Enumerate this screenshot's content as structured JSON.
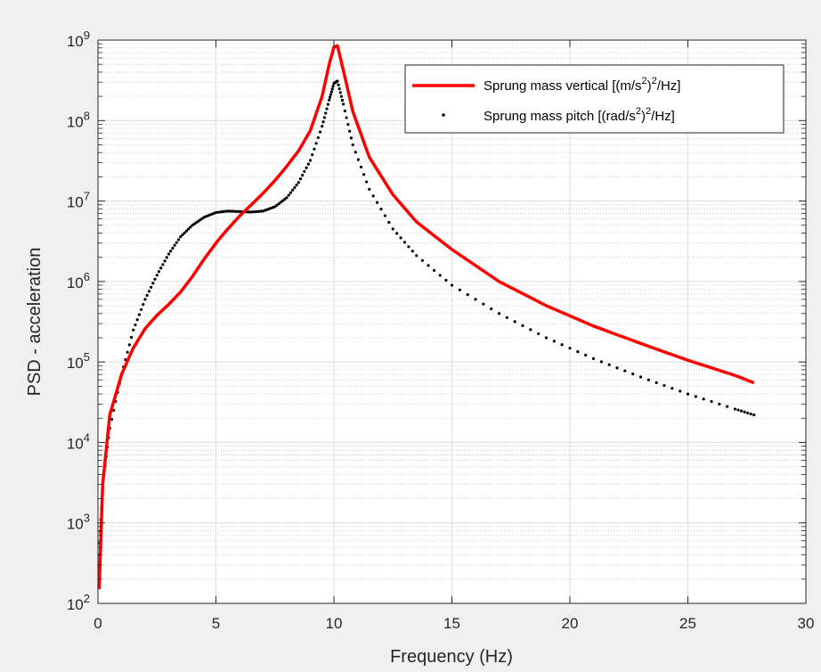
{
  "chart_data": {
    "type": "line",
    "xlabel": "Frequency (Hz)",
    "ylabel": "PSD - acceleration",
    "xlim": [
      0,
      30
    ],
    "ylim": [
      100,
      1000000000
    ],
    "yscale": "log",
    "xticks": [
      "0",
      "5",
      "10",
      "15",
      "20",
      "25",
      "30"
    ],
    "ytick_exponents": [
      "2",
      "3",
      "4",
      "5",
      "6",
      "7",
      "8",
      "9"
    ],
    "ytick_base": "10",
    "grid": true,
    "minor_grid": true,
    "legend_position": "top-right",
    "series": [
      {
        "name": "Sprung mass vertical [(m/s²)²/Hz]",
        "legend": {
          "pre": "Sprung mass vertical [(m/s",
          "sup1": "2",
          "mid": ")",
          "sup2": "2",
          "post": "/Hz]"
        },
        "color": "#ff0000",
        "style": "solid",
        "x": [
          0.05,
          0.2,
          0.5,
          1.0,
          1.5,
          2.0,
          2.5,
          3.0,
          3.5,
          4.0,
          4.5,
          5.0,
          5.5,
          6.0,
          6.5,
          7.0,
          7.5,
          8.0,
          8.5,
          9.0,
          9.5,
          9.8,
          10.0,
          10.15,
          10.4,
          10.8,
          11.5,
          12.5,
          13.5,
          15.0,
          17.0,
          19.0,
          21.0,
          23.0,
          25.0,
          27.0,
          27.8
        ],
        "y": [
          150,
          3000,
          22000,
          70000,
          150000,
          260000,
          380000,
          520000,
          740000,
          1150000,
          1900000,
          3000000,
          4500000,
          6500000,
          9000000,
          12500000,
          18000000,
          27000000,
          42000000,
          75000000,
          200000000,
          500000000,
          820000000,
          850000000,
          420000000,
          130000000,
          35000000,
          12000000,
          5500000,
          2500000,
          1000000,
          500000,
          280000,
          170000,
          105000,
          68000,
          55000
        ]
      },
      {
        "name": "Sprung mass pitch [(rad/s²)²/Hz]",
        "legend": {
          "pre": "Sprung mass pitch [(rad/s",
          "sup1": "2",
          "mid": ")",
          "sup2": "2",
          "post": "/Hz]"
        },
        "color": "#000000",
        "style": "dotted",
        "x": [
          0.05,
          0.2,
          0.5,
          1.0,
          1.5,
          2.0,
          2.5,
          3.0,
          3.5,
          4.0,
          4.5,
          5.0,
          5.5,
          6.0,
          6.5,
          7.0,
          7.5,
          8.0,
          8.5,
          9.0,
          9.5,
          9.8,
          10.0,
          10.15,
          10.4,
          10.8,
          11.5,
          12.5,
          13.5,
          15.0,
          17.0,
          19.0,
          21.0,
          23.0,
          25.0,
          27.0,
          27.8
        ],
        "y": [
          400,
          3000,
          15000,
          70000,
          250000,
          600000,
          1200000,
          2200000,
          3600000,
          5000000,
          6300000,
          7200000,
          7500000,
          7400000,
          7300000,
          7500000,
          8500000,
          11000000,
          17000000,
          32000000,
          85000000,
          180000000,
          290000000,
          310000000,
          160000000,
          50000000,
          14000000,
          4500000,
          2100000,
          900000,
          400000,
          200000,
          110000,
          65000,
          40000,
          26000,
          22000
        ]
      }
    ]
  }
}
